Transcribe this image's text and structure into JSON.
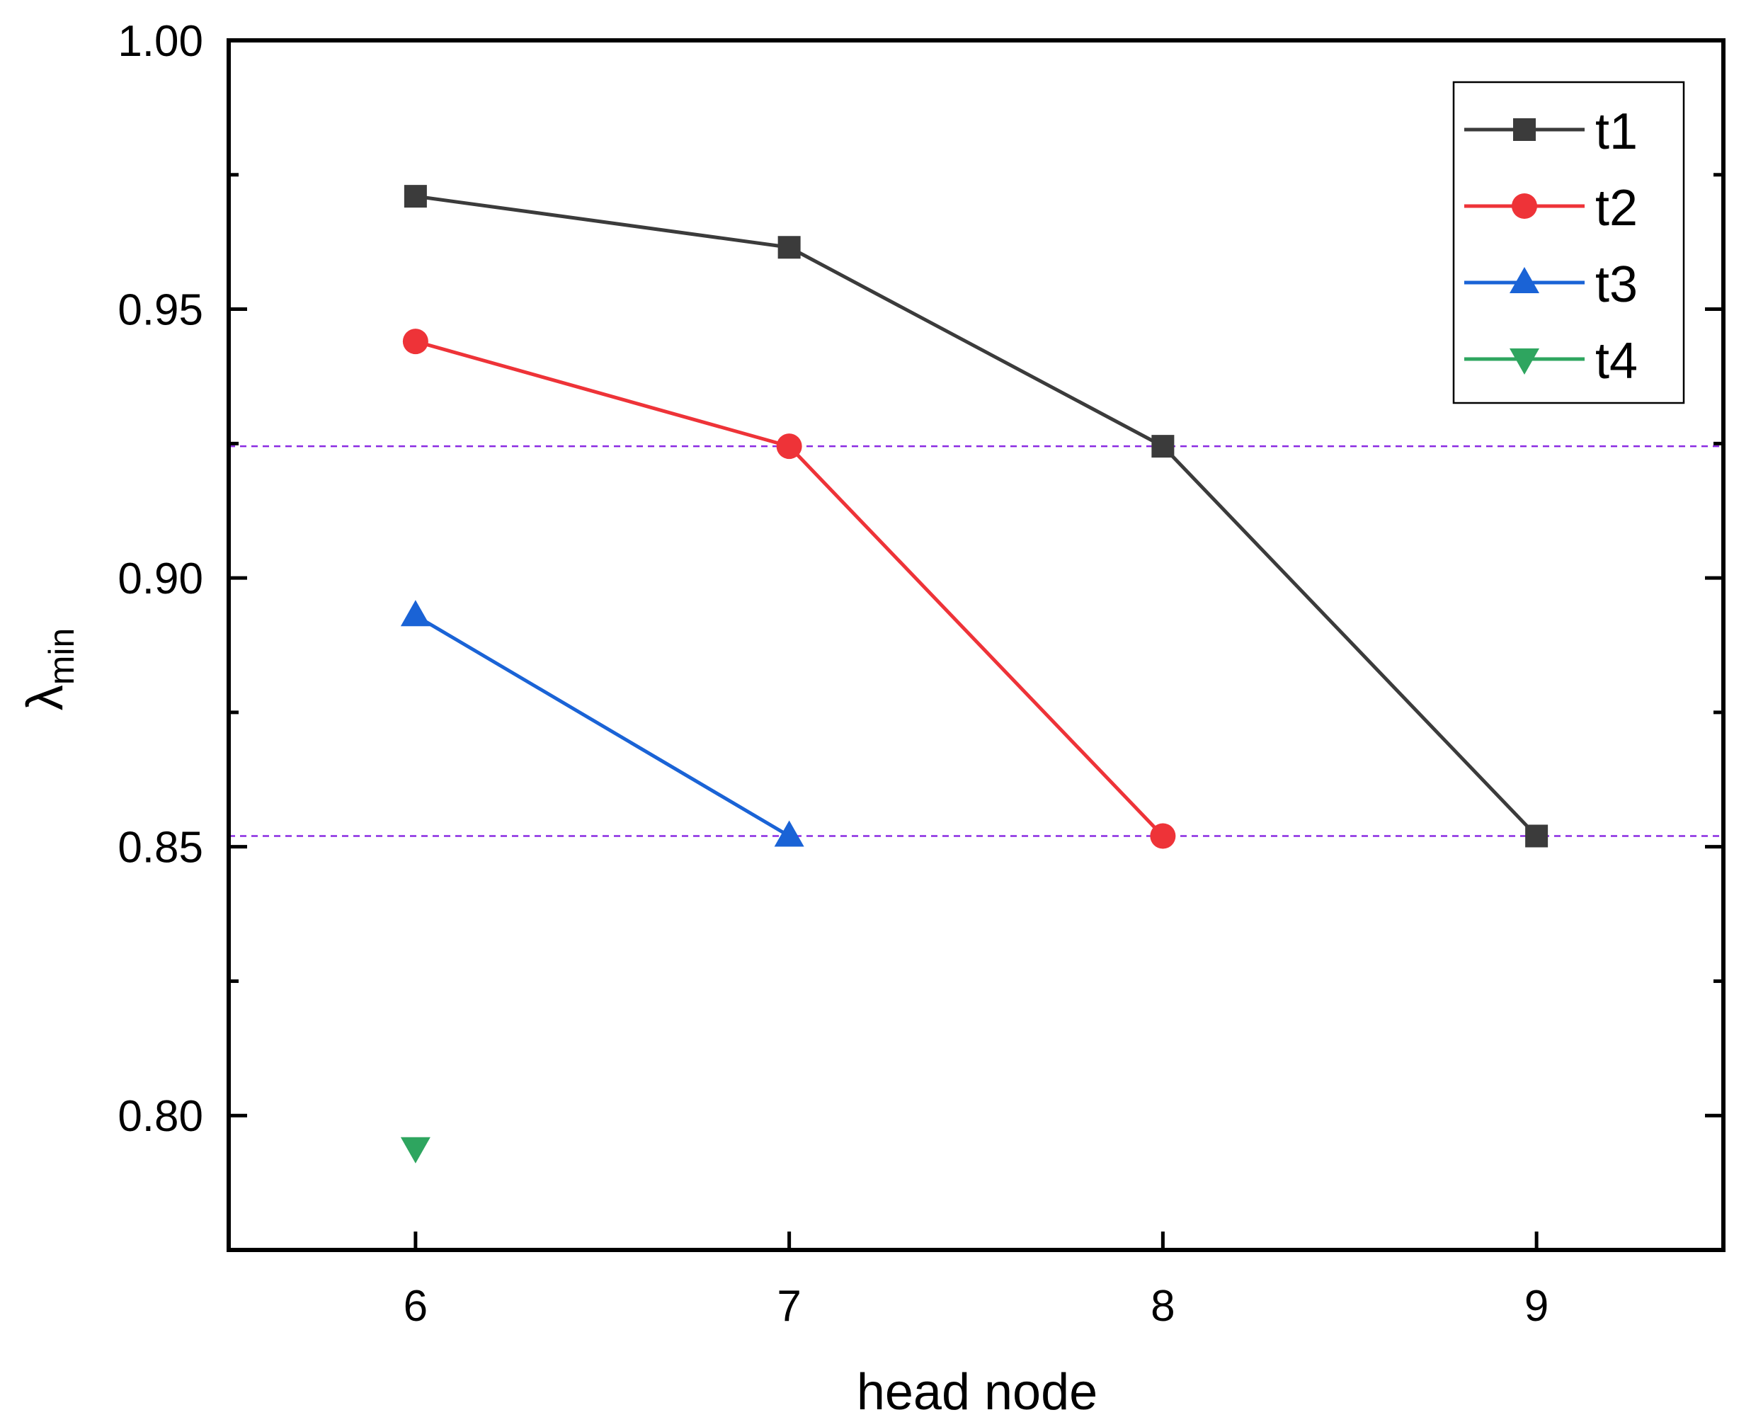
{
  "chart_data": {
    "type": "line",
    "title": "",
    "xlabel": "head node",
    "ylabel": "λ",
    "ylabel_subscript": "min",
    "x_ticks": [
      6,
      7,
      8,
      9
    ],
    "x_tick_labels": [
      "6",
      "7",
      "8",
      "9"
    ],
    "xlim": [
      5.5,
      9.5
    ],
    "y_ticks": [
      0.8,
      0.85,
      0.9,
      0.95,
      1.0
    ],
    "y_tick_labels": [
      "0.80",
      "0.85",
      "0.90",
      "0.95",
      "1.00"
    ],
    "ylim": [
      0.775,
      1.0
    ],
    "reference_lines": [
      0.9245,
      0.852
    ],
    "reference_color": "#8a2be2",
    "legend_position": "top-right",
    "series": [
      {
        "name": "t1",
        "marker": "square",
        "color": "#3b3b3b",
        "x": [
          6,
          7,
          8,
          9
        ],
        "values": [
          0.971,
          0.9615,
          0.9245,
          0.852
        ]
      },
      {
        "name": "t2",
        "marker": "circle",
        "color": "#ee3338",
        "x": [
          6,
          7,
          8
        ],
        "values": [
          0.944,
          0.9245,
          0.852
        ]
      },
      {
        "name": "t3",
        "marker": "triangle-up",
        "color": "#1a63d6",
        "x": [
          6,
          7
        ],
        "values": [
          0.893,
          0.852
        ]
      },
      {
        "name": "t4",
        "marker": "triangle-down",
        "color": "#2ea55f",
        "x": [
          6
        ],
        "values": [
          0.794
        ]
      }
    ]
  }
}
